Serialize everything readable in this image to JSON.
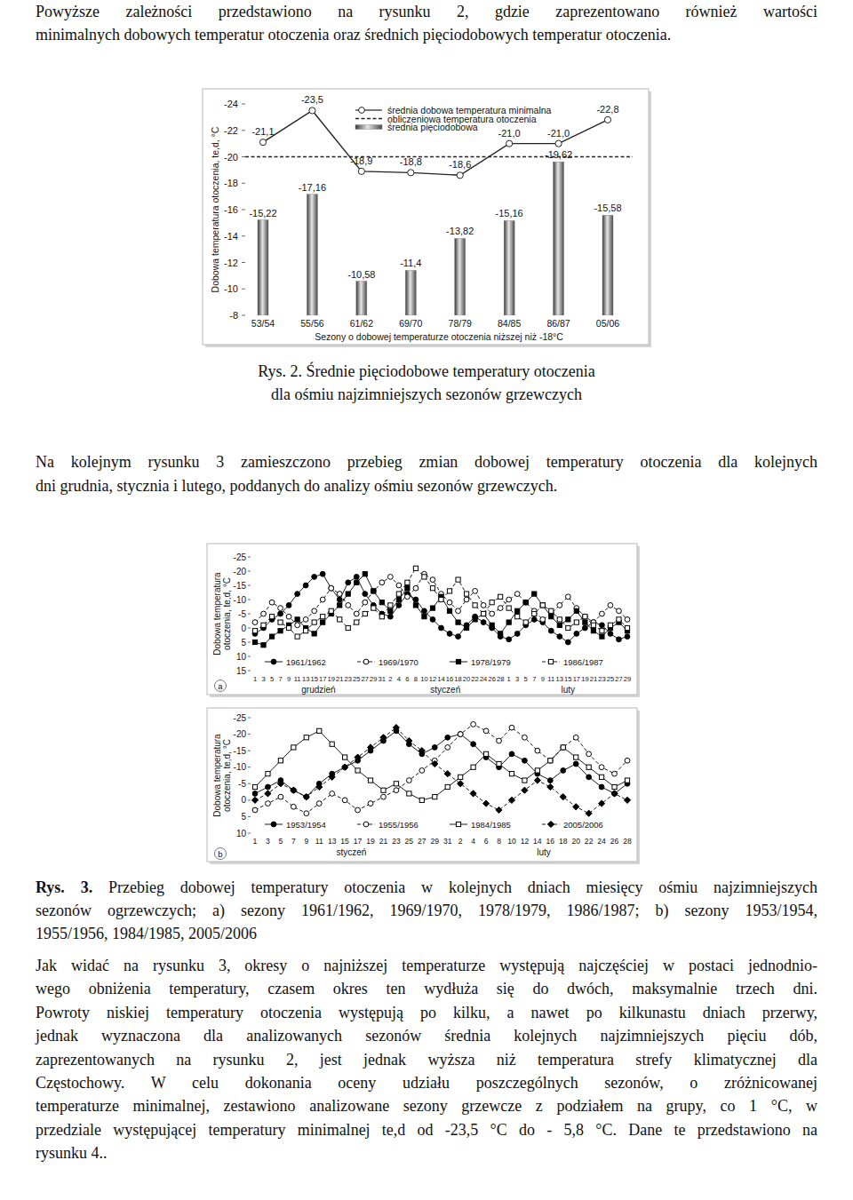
{
  "document": {
    "paragraphs": [
      [
        "Powyższe zależności przedstawiono na rysunku 2, gdzie zaprezentowano również wartości",
        "minimalnych dobowych temperatur otoczenia oraz średnich pięciodobowych temperatur otoczenia."
      ],
      [
        "Na kolejnym rysunku 3 zamieszczono przebieg zmian dobowej temperatury otoczenia dla kolejnych",
        "dni grudnia, stycznia i lutego, poddanych do analizy ośmiu sezonów grzewczych."
      ],
      [
        "Jak widać na rysunku 3, okresy o najniższej temperaturze występują najczęściej w postaci jednodnio-",
        "wego obniżenia temperatury, czasem okres ten wydłuża się do dwóch, maksymalnie trzech dni.",
        "Powroty niskiej temperatury otoczenia występują po kilku, a nawet po kilkunastu dniach przerwy,",
        "jednak wyznaczona dla analizowanych sezonów średnia kolejnych najzimniejszych pięciu dób,",
        "zaprezentowanych na rysunku 2, jest jednak wyższa niż temperatura strefy klimatycznej dla",
        "Częstochowy. W celu dokonania oceny udziału poszczególnych sezonów, o zróżnicowanej",
        "temperaturze minimalnej, zestawiono analizowane sezony grzewcze z podziałem na grupy, co 1 °C, w",
        "przedziale występującej temperatury minimalnej te,d od -23,5 °C do - 5,8 °C. Dane te przedstawiono na",
        "rysunku 4.."
      ]
    ],
    "captions": [
      {
        "label": "Rys. 2.",
        "lines": [
          "Średnie pięciodobowe temperatury otoczenia",
          "dla ośmiu najzimniejszych sezonów grzewczych"
        ]
      },
      {
        "label": "Rys. 3.",
        "lines": [
          "Przebieg dobowej temperatury otoczenia w kolejnych dniach miesięcy ośmiu najzimniejszych",
          "sezonów ogrzewczych; a) sezony 1961/1962, 1969/1970, 1978/1979, 1986/1987; b) sezony 1953/1954,",
          "1955/1956, 1984/1985, 2005/2006"
        ]
      }
    ]
  },
  "chart_data": [
    {
      "type": "bar",
      "x_label": "Sezony o dobowej temperaturze otoczenia niższej niż -18°C",
      "y_label": "Dobowa temperatura otoczenia, te,d, °C",
      "categories": [
        "53/54",
        "55/56",
        "61/62",
        "69/70",
        "78/79",
        "84/85",
        "86/87",
        "05/06"
      ],
      "ylim": [
        -8,
        -24
      ],
      "yticks": [
        -8,
        -10,
        -12,
        -14,
        -16,
        -18,
        -20,
        -22,
        -24
      ],
      "data_labels": true,
      "legend": "top",
      "series": [
        {
          "name": "średnia dobowa temperatura minimalna",
          "type": "line",
          "marker": "open-circle",
          "line_style": "solid",
          "color": "#222222",
          "values": [
            -21.1,
            -23.5,
            -18.9,
            -18.8,
            -18.6,
            -21.0,
            -21.0,
            -22.8
          ],
          "value_labels": [
            "-21,1",
            "-23,5",
            "-18,9",
            "-18,8",
            "-18,6",
            "-21,0",
            "-21,0",
            "-22,8"
          ]
        },
        {
          "name": "średnia pięciodobowa",
          "type": "bar",
          "color": "#777777",
          "values": [
            -15.22,
            -17.16,
            -10.58,
            -11.4,
            -13.82,
            -15.16,
            -19.62,
            -15.58
          ],
          "value_labels": [
            "-15,22",
            "-17,16",
            "-10,58",
            "-11,4",
            "-13,82",
            "-15,16",
            "-19,62",
            "-15,58"
          ]
        }
      ],
      "reference_lines": [
        {
          "name": "obliczeniowa temperatura otoczenia",
          "value": -20,
          "line_style": "dashed",
          "color": "#222222"
        }
      ]
    },
    {
      "type": "line",
      "panel_label": "a",
      "y_label": [
        "Dobowa temperatura",
        "otoczenia, te,d, °C"
      ],
      "categories": [
        "1",
        "3",
        "5",
        "7",
        "9",
        "11",
        "13",
        "15",
        "17",
        "19",
        "21",
        "23",
        "25",
        "27",
        "29",
        "31",
        "2",
        "4",
        "6",
        "8",
        "10",
        "12",
        "14",
        "16",
        "18",
        "20",
        "22",
        "24",
        "26",
        "28",
        "1",
        "3",
        "5",
        "7",
        "9",
        "11",
        "13",
        "15",
        "17",
        "19",
        "21",
        "23",
        "25",
        "27",
        "29"
      ],
      "months": [
        "grudzień",
        "styczeń",
        "luty"
      ],
      "ylim": [
        15,
        -25
      ],
      "yticks": [
        15,
        10,
        5,
        0,
        -5,
        -10,
        -15,
        -20,
        -25
      ],
      "legend": "bottom",
      "series": [
        {
          "name": "1961/1962",
          "marker": "circle",
          "line_style": "solid",
          "color": "#000000",
          "values": [
            2,
            0,
            -3,
            -5,
            -8,
            -12,
            -15,
            -18,
            -19,
            -14,
            -10,
            -16,
            -18,
            -12,
            -8,
            -5,
            -4,
            -8,
            -12,
            -10,
            -6,
            -3,
            0,
            2,
            3,
            -1,
            -4,
            -2,
            0,
            3,
            4,
            2,
            -1,
            -3,
            -2,
            1,
            3,
            5,
            2,
            0,
            -2,
            -1,
            2,
            4,
            3
          ]
        },
        {
          "name": "1969/1970",
          "marker": "open-circle",
          "line_style": "dashed",
          "color": "#000000",
          "values": [
            -2,
            -5,
            -9,
            -7,
            -4,
            -1,
            -3,
            -6,
            -10,
            -14,
            -12,
            -8,
            -5,
            -9,
            -13,
            -16,
            -18,
            -15,
            -11,
            -14,
            -19,
            -17,
            -12,
            -9,
            -6,
            -10,
            -13,
            -8,
            -5,
            -7,
            -10,
            -12,
            -9,
            -6,
            -3,
            -5,
            -8,
            -11,
            -7,
            -4,
            -2,
            -5,
            -8,
            -6,
            -3
          ]
        },
        {
          "name": "1978/1979",
          "marker": "square",
          "line_style": "solid",
          "color": "#000000",
          "values": [
            5,
            6,
            3,
            1,
            -1,
            -3,
            0,
            2,
            -2,
            -5,
            -8,
            -12,
            -16,
            -19,
            -13,
            -9,
            -6,
            -10,
            -14,
            -8,
            -4,
            -7,
            -11,
            -6,
            -2,
            0,
            -3,
            -5,
            -1,
            2,
            -2,
            -6,
            -9,
            -12,
            -8,
            -4,
            -1,
            -3,
            -6,
            -2,
            1,
            3,
            0,
            -2,
            1
          ]
        },
        {
          "name": "1986/1987",
          "marker": "open-square",
          "line_style": "dashed",
          "color": "#000000",
          "values": [
            1,
            -1,
            -4,
            -2,
            0,
            3,
            1,
            -2,
            -4,
            -6,
            -3,
            0,
            -2,
            -5,
            -7,
            -4,
            -8,
            -12,
            -16,
            -21,
            -18,
            -14,
            -10,
            -13,
            -17,
            -12,
            -8,
            -5,
            -9,
            -11,
            -7,
            -4,
            -2,
            -5,
            -8,
            -6,
            -3,
            0,
            -2,
            -4,
            -1,
            1,
            -1,
            -3,
            0
          ]
        }
      ]
    },
    {
      "type": "line",
      "panel_label": "b",
      "y_label": [
        "Dobowa temperatura",
        "otoczenia, te,d, °C"
      ],
      "categories": [
        "1",
        "3",
        "5",
        "7",
        "9",
        "11",
        "13",
        "15",
        "17",
        "19",
        "21",
        "23",
        "25",
        "27",
        "29",
        "31",
        "2",
        "4",
        "6",
        "8",
        "10",
        "12",
        "14",
        "16",
        "18",
        "20",
        "22",
        "24",
        "26",
        "28"
      ],
      "months": [
        "styczeń",
        "luty"
      ],
      "ylim": [
        10,
        -25
      ],
      "yticks": [
        10,
        5,
        0,
        -5,
        -10,
        -15,
        -20,
        -25
      ],
      "legend": "bottom",
      "series": [
        {
          "name": "1953/1954",
          "marker": "circle",
          "line_style": "solid",
          "color": "#000000",
          "values": [
            -2,
            -4,
            -6,
            -3,
            -1,
            -5,
            -8,
            -10,
            -12,
            -15,
            -18,
            -21,
            -17,
            -14,
            -16,
            -19,
            -20,
            -17,
            -13,
            -10,
            -14,
            -12,
            -8,
            -6,
            -9,
            -11,
            -7,
            -4,
            -2,
            -5
          ]
        },
        {
          "name": "1955/1956",
          "marker": "open-circle",
          "line_style": "dashed",
          "color": "#000000",
          "values": [
            3,
            1,
            -1,
            2,
            4,
            1,
            -2,
            0,
            3,
            1,
            -1,
            -3,
            -6,
            -9,
            -12,
            -16,
            -20,
            -23,
            -21,
            -18,
            -22,
            -19,
            -15,
            -12,
            -16,
            -19,
            -14,
            -10,
            -8,
            -12
          ]
        },
        {
          "name": "1984/1985",
          "marker": "open-square",
          "line_style": "solid",
          "color": "#000000",
          "values": [
            -4,
            -8,
            -12,
            -16,
            -19,
            -21,
            -17,
            -13,
            -9,
            -6,
            -3,
            -5,
            -2,
            0,
            -1,
            -4,
            -7,
            -10,
            -14,
            -11,
            -8,
            -6,
            -9,
            -12,
            -16,
            -13,
            -10,
            -7,
            -4,
            -6
          ]
        },
        {
          "name": "2005/2006",
          "marker": "diamond",
          "line_style": "dashed",
          "color": "#000000",
          "values": [
            0,
            -2,
            -5,
            -3,
            -1,
            -4,
            -7,
            -10,
            -13,
            -16,
            -19,
            -22,
            -18,
            -15,
            -11,
            -8,
            -5,
            -2,
            1,
            3,
            0,
            -3,
            -6,
            -4,
            -1,
            2,
            4,
            1,
            -2,
            0
          ]
        }
      ]
    }
  ]
}
